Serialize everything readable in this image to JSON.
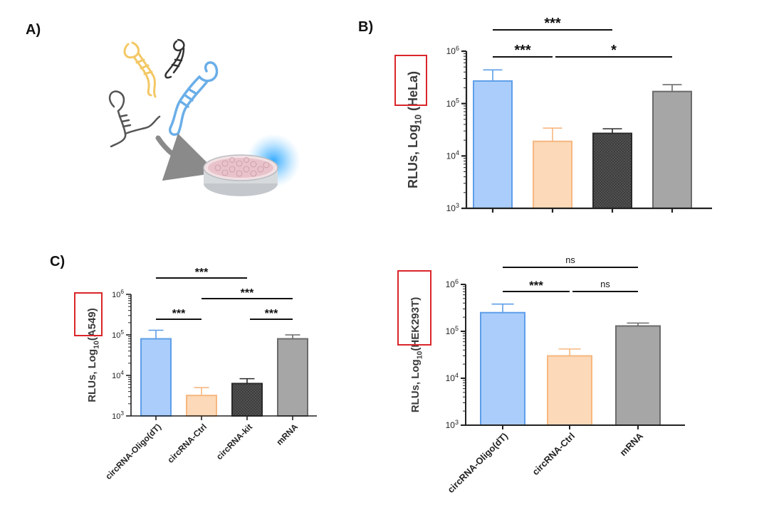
{
  "panels": {
    "a": "A)",
    "b": "B)",
    "c": "C)"
  },
  "colors": {
    "blue_fill": "#aacdfb",
    "blue_edge": "#5e9ee8",
    "peach_fill": "#fcd9b8",
    "peach_edge": "#f6b780",
    "dark_fill": "#4a4a4a",
    "dark_edge": "#2a2a2a",
    "grey_fill": "#a6a6a6",
    "grey_edge": "#6b6b6b",
    "highlight": "#d9262a"
  },
  "chart_data": [
    {
      "id": "hela",
      "type": "bar",
      "yscale": "log10",
      "ylim": [
        1000,
        1000000
      ],
      "yticks": [
        {
          "base": "10",
          "exp": "3"
        },
        {
          "base": "10",
          "exp": "4"
        },
        {
          "base": "10",
          "exp": "5"
        },
        {
          "base": "10",
          "exp": "6"
        }
      ],
      "ylabel": {
        "pre": "RLUs, Log",
        "sub": "10",
        "post": " ",
        "highlight": "(HeLa)"
      },
      "categories": [
        "",
        "",
        "",
        ""
      ],
      "values": [
        270000,
        19000,
        27000,
        170000
      ],
      "errors": [
        440000,
        34000,
        33000,
        230000
      ],
      "styles": [
        "blue",
        "peach",
        "dark",
        "grey"
      ],
      "significance": [
        {
          "from": 0,
          "to": 1,
          "label": "***",
          "level": 0
        },
        {
          "from": 1,
          "to": 3,
          "label": "*",
          "level": 0
        },
        {
          "from": 0,
          "to": 2,
          "label": "***",
          "level": 1
        }
      ]
    },
    {
      "id": "a549",
      "type": "bar",
      "yscale": "log10",
      "ylim": [
        1000,
        1000000
      ],
      "yticks": [
        {
          "base": "10",
          "exp": "3"
        },
        {
          "base": "10",
          "exp": "4"
        },
        {
          "base": "10",
          "exp": "5"
        },
        {
          "base": "10",
          "exp": "6"
        }
      ],
      "ylabel": {
        "pre": "RLUs, Log",
        "sub": "10",
        "post": "",
        "highlight": "(A549)"
      },
      "categories": [
        "circRNA-Oligo(dT)",
        "circRNA-Ctrl",
        "circRNA-kit",
        "mRNA"
      ],
      "values": [
        80000,
        3200,
        6300,
        80000
      ],
      "errors": [
        130000,
        5000,
        8300,
        100000
      ],
      "styles": [
        "blue",
        "peach",
        "dark",
        "grey"
      ],
      "significance": [
        {
          "from": 0,
          "to": 1,
          "label": "***",
          "level": 0
        },
        {
          "from": 2,
          "to": 3,
          "label": "***",
          "level": 0
        },
        {
          "from": 1,
          "to": 3,
          "label": "***",
          "level": 1
        },
        {
          "from": 0,
          "to": 2,
          "label": "***",
          "level": 2
        }
      ]
    },
    {
      "id": "hek293t",
      "type": "bar",
      "yscale": "log10",
      "ylim": [
        1000,
        1000000
      ],
      "yticks": [
        {
          "base": "10",
          "exp": "3"
        },
        {
          "base": "10",
          "exp": "4"
        },
        {
          "base": "10",
          "exp": "5"
        },
        {
          "base": "10",
          "exp": "6"
        }
      ],
      "ylabel": {
        "pre": "RLUs, Log",
        "sub": "10",
        "post": "",
        "highlight": "(HEK293T)"
      },
      "categories": [
        "circRNA-Oligo(dT)",
        "circRNA-Ctrl",
        "mRNA"
      ],
      "values": [
        250000,
        30000,
        130000
      ],
      "errors": [
        380000,
        42000,
        150000
      ],
      "styles": [
        "blue",
        "peach",
        "grey"
      ],
      "significance": [
        {
          "from": 0,
          "to": 1,
          "label": "***",
          "level": 0
        },
        {
          "from": 1,
          "to": 2,
          "label": "ns",
          "level": 0
        },
        {
          "from": 0,
          "to": 2,
          "label": "ns",
          "level": 1
        }
      ]
    }
  ]
}
